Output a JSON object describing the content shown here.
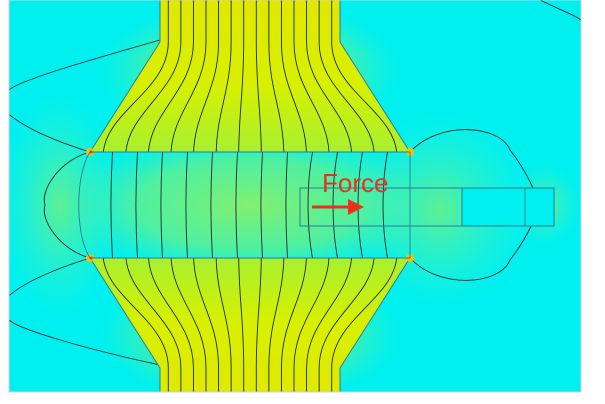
{
  "figure": {
    "annotation": {
      "label": "Force",
      "color": "#e8321e"
    },
    "colors": {
      "background_field": "#00f0f0",
      "weak_field": "#40f0a0",
      "medium_field": "#80f060",
      "pole_field": "#e8f000",
      "strong_field": "#f8c000",
      "flux_line": "#1a2a30",
      "outline": "#2a7a9a",
      "frame": "#d0d0d0"
    }
  }
}
